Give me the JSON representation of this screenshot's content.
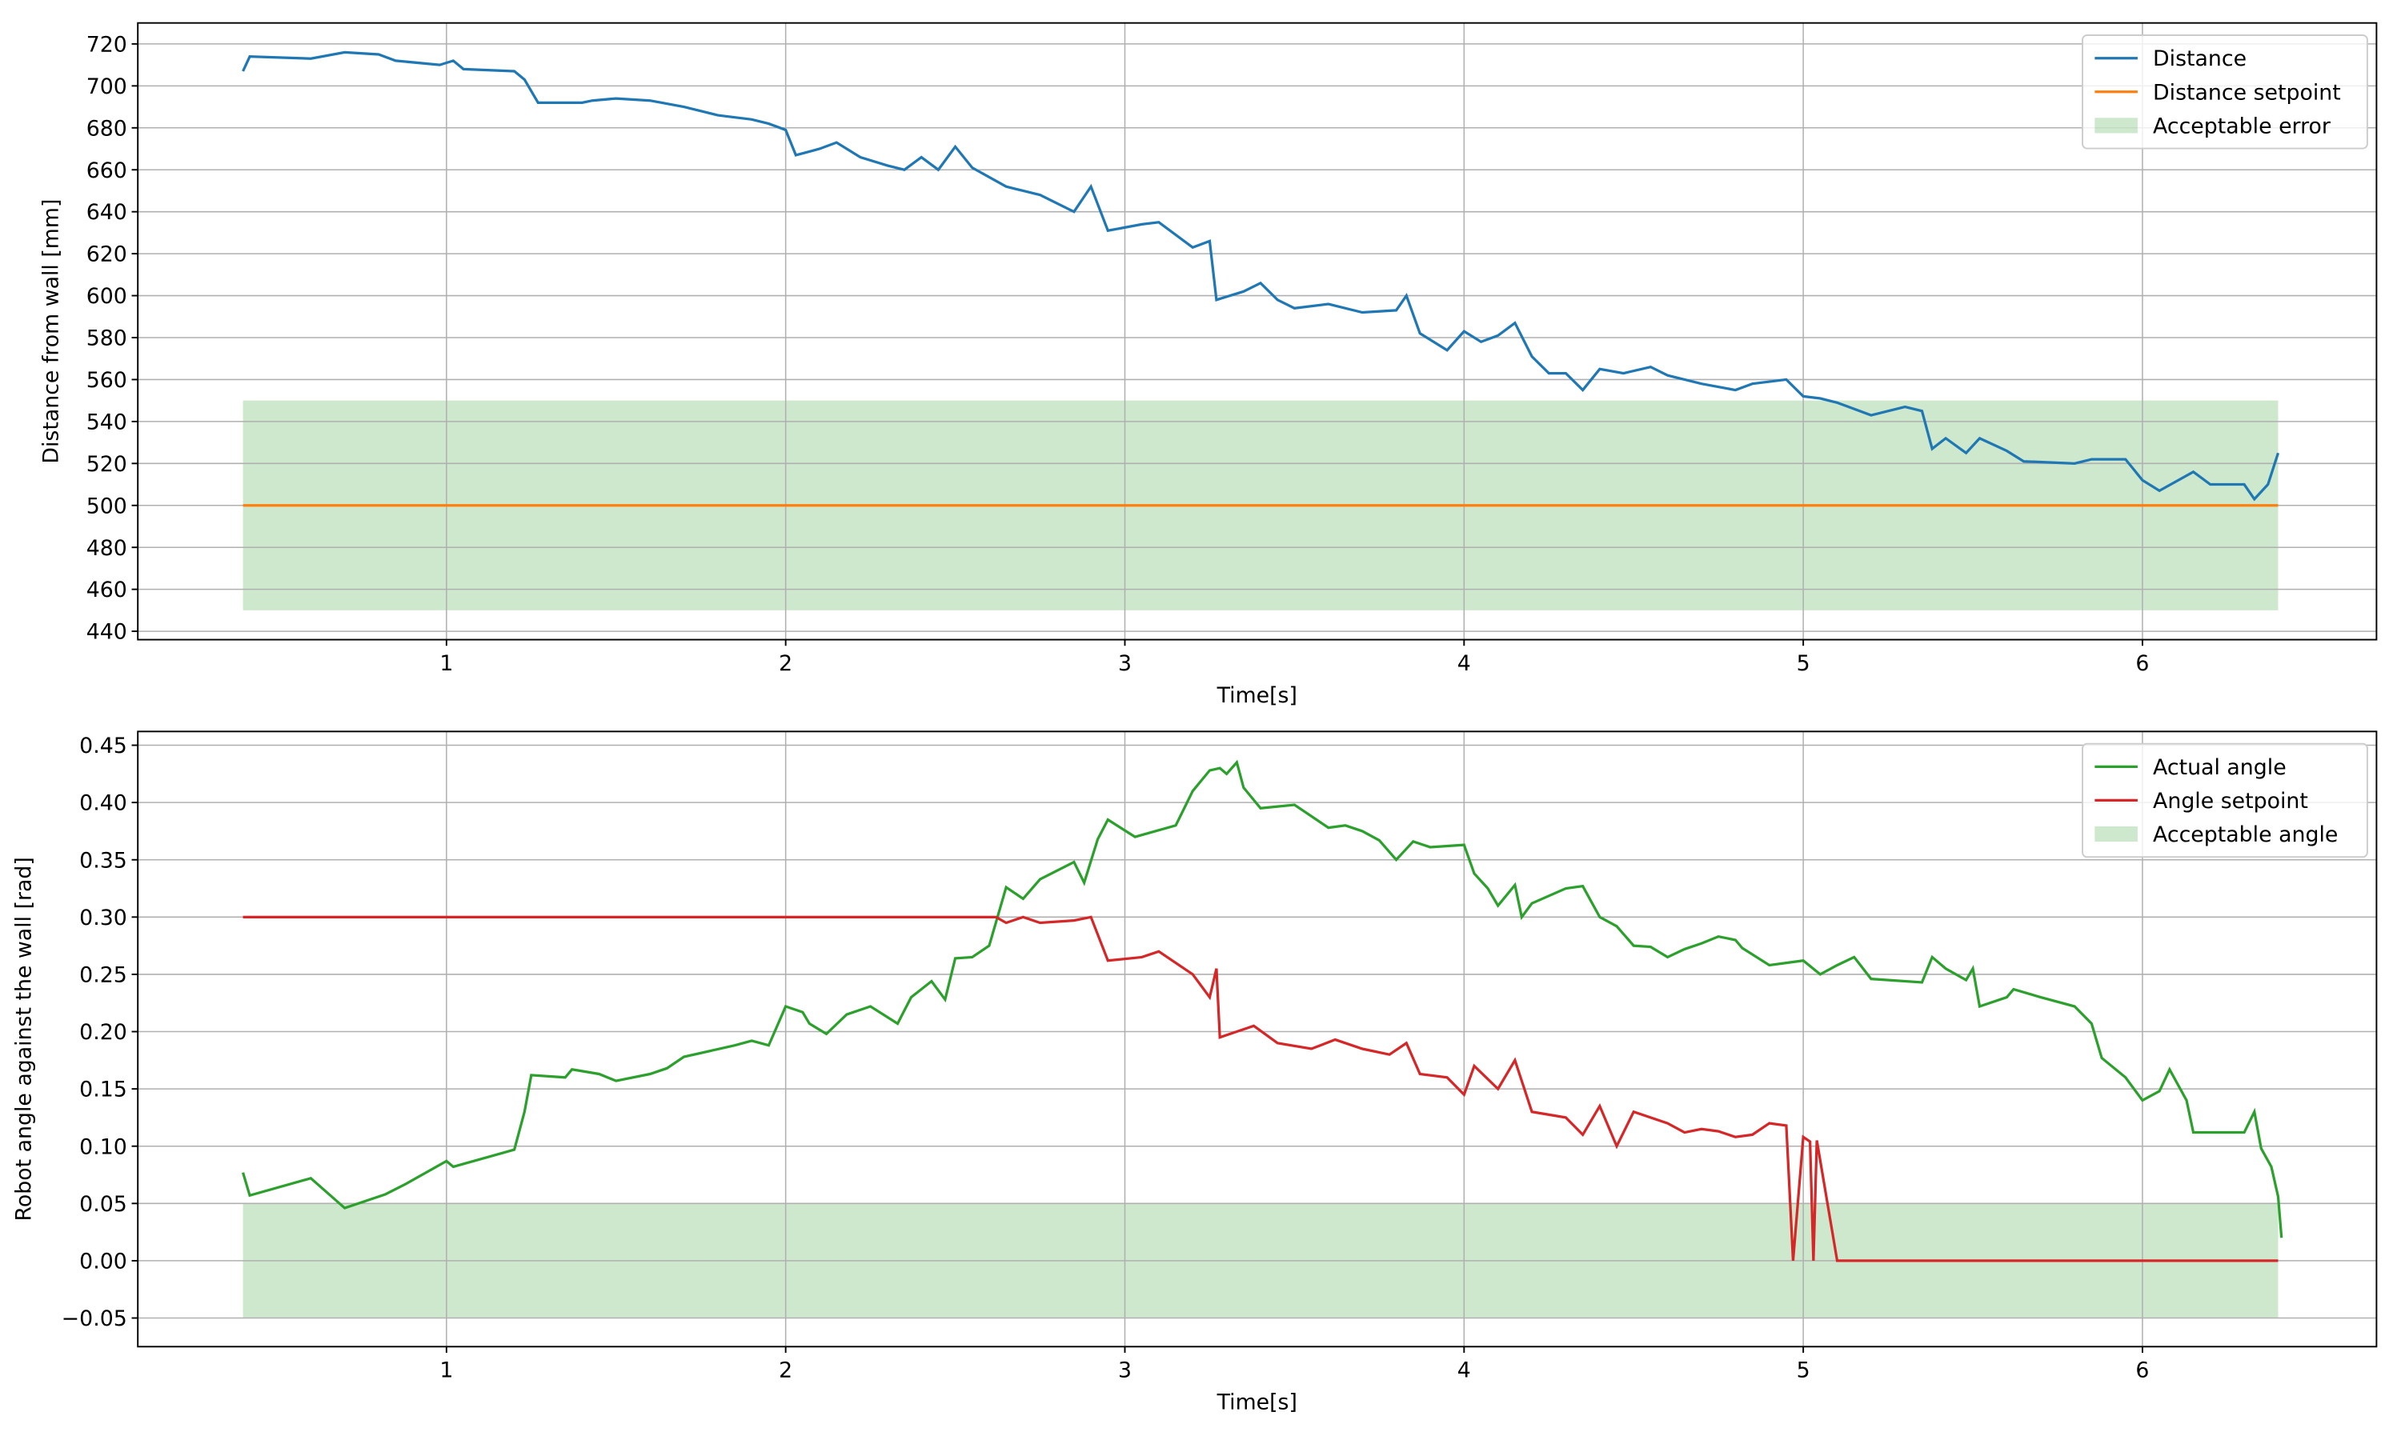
{
  "chart_data": [
    {
      "type": "line",
      "xlabel": "Time[s]",
      "ylabel": "Distance from wall [mm]",
      "xlim": [
        0.09,
        6.69
      ],
      "ylim": [
        436,
        730
      ],
      "grid": true,
      "legend": "upper right",
      "xticks": [
        1,
        2,
        3,
        4,
        5,
        6
      ],
      "yticks": [
        440,
        460,
        480,
        500,
        520,
        540,
        560,
        580,
        600,
        620,
        640,
        660,
        680,
        700,
        720
      ],
      "series": [
        {
          "name": "Distance",
          "color": "#1f77b4",
          "x": [
            0.4,
            0.42,
            0.6,
            0.7,
            0.8,
            0.85,
            0.98,
            1.02,
            1.05,
            1.2,
            1.23,
            1.27,
            1.4,
            1.43,
            1.5,
            1.6,
            1.7,
            1.8,
            1.9,
            1.95,
            2.0,
            2.03,
            2.1,
            2.15,
            2.22,
            2.3,
            2.35,
            2.4,
            2.45,
            2.5,
            2.55,
            2.65,
            2.7,
            2.75,
            2.85,
            2.9,
            2.95,
            3.05,
            3.1,
            3.2,
            3.25,
            3.27,
            3.35,
            3.4,
            3.45,
            3.5,
            3.6,
            3.7,
            3.8,
            3.83,
            3.87,
            3.95,
            4.0,
            4.05,
            4.1,
            4.15,
            4.2,
            4.25,
            4.3,
            4.35,
            4.4,
            4.47,
            4.55,
            4.6,
            4.7,
            4.8,
            4.85,
            4.9,
            4.95,
            5.0,
            5.05,
            5.1,
            5.2,
            5.3,
            5.35,
            5.38,
            5.42,
            5.48,
            5.52,
            5.6,
            5.65,
            5.8,
            5.85,
            5.95,
            6.0,
            6.05,
            6.15,
            6.2,
            6.3,
            6.33,
            6.37,
            6.4
          ],
          "values": [
            707,
            714,
            713,
            716,
            715,
            712,
            710,
            712,
            708,
            707,
            703,
            692,
            692,
            693,
            694,
            693,
            690,
            686,
            684,
            682,
            679,
            667,
            670,
            673,
            666,
            662,
            660,
            666,
            660,
            671,
            661,
            652,
            650,
            648,
            640,
            652,
            631,
            634,
            635,
            623,
            626,
            598,
            602,
            606,
            598,
            594,
            596,
            592,
            593,
            600,
            582,
            574,
            583,
            578,
            581,
            587,
            571,
            563,
            563,
            555,
            565,
            563,
            566,
            562,
            558,
            555,
            558,
            559,
            560,
            552,
            551,
            549,
            543,
            547,
            545,
            527,
            532,
            525,
            532,
            526,
            521,
            520,
            522,
            522,
            512,
            507,
            516,
            510,
            510,
            503,
            510,
            525
          ]
        },
        {
          "name": "Distance setpoint",
          "color": "#ff7f0e",
          "x": [
            0.4,
            6.4
          ],
          "values": [
            500,
            500
          ]
        }
      ],
      "bands": [
        {
          "name": "Acceptable error",
          "color": "#2ca02c",
          "x": [
            0.4,
            6.4
          ],
          "lower": [
            450,
            450
          ],
          "upper": [
            550,
            550
          ]
        }
      ]
    },
    {
      "type": "line",
      "xlabel": "Time[s]",
      "ylabel": "Robot angle against the wall [rad]",
      "xlim": [
        0.09,
        6.69
      ],
      "ylim": [
        -0.075,
        0.462
      ],
      "grid": true,
      "legend": "upper right",
      "xticks": [
        1,
        2,
        3,
        4,
        5,
        6
      ],
      "yticks": [
        {
          "value": -0.05,
          "label": "−0.05"
        },
        {
          "value": 0,
          "label": "0.00"
        },
        {
          "value": 0.05,
          "label": "0.05"
        },
        {
          "value": 0.1,
          "label": "0.10"
        },
        {
          "value": 0.15,
          "label": "0.15"
        },
        {
          "value": 0.2,
          "label": "0.20"
        },
        {
          "value": 0.25,
          "label": "0.25"
        },
        {
          "value": 0.3,
          "label": "0.30"
        },
        {
          "value": 0.35,
          "label": "0.35"
        },
        {
          "value": 0.4,
          "label": "0.40"
        },
        {
          "value": 0.45,
          "label": "0.45"
        }
      ],
      "series": [
        {
          "name": "Actual angle",
          "color": "#2ca02c",
          "x": [
            0.4,
            0.42,
            0.6,
            0.7,
            0.82,
            0.88,
            1.0,
            1.02,
            1.2,
            1.23,
            1.25,
            1.35,
            1.37,
            1.45,
            1.5,
            1.6,
            1.65,
            1.7,
            1.85,
            1.9,
            1.95,
            2.0,
            2.05,
            2.07,
            2.12,
            2.18,
            2.25,
            2.33,
            2.37,
            2.43,
            2.47,
            2.5,
            2.55,
            2.6,
            2.65,
            2.7,
            2.75,
            2.85,
            2.88,
            2.92,
            2.95,
            3.03,
            3.15,
            3.2,
            3.25,
            3.28,
            3.3,
            3.33,
            3.35,
            3.4,
            3.5,
            3.6,
            3.65,
            3.7,
            3.75,
            3.8,
            3.85,
            3.9,
            4.0,
            4.03,
            4.07,
            4.1,
            4.15,
            4.17,
            4.2,
            4.3,
            4.35,
            4.4,
            4.45,
            4.5,
            4.55,
            4.6,
            4.65,
            4.7,
            4.75,
            4.8,
            4.82,
            4.9,
            4.95,
            5.0,
            5.05,
            5.1,
            5.15,
            5.2,
            5.35,
            5.38,
            5.42,
            5.48,
            5.5,
            5.52,
            5.6,
            5.62,
            5.7,
            5.8,
            5.85,
            5.88,
            5.95,
            6.0,
            6.05,
            6.08,
            6.13,
            6.15,
            6.3,
            6.33,
            6.35,
            6.38,
            6.4,
            6.41
          ],
          "values": [
            0.077,
            0.057,
            0.072,
            0.046,
            0.058,
            0.067,
            0.087,
            0.082,
            0.097,
            0.13,
            0.162,
            0.16,
            0.167,
            0.163,
            0.157,
            0.163,
            0.168,
            0.178,
            0.188,
            0.192,
            0.188,
            0.222,
            0.217,
            0.207,
            0.198,
            0.215,
            0.222,
            0.207,
            0.23,
            0.244,
            0.228,
            0.264,
            0.265,
            0.275,
            0.326,
            0.316,
            0.333,
            0.348,
            0.33,
            0.368,
            0.385,
            0.37,
            0.38,
            0.41,
            0.428,
            0.43,
            0.425,
            0.435,
            0.413,
            0.395,
            0.398,
            0.378,
            0.38,
            0.375,
            0.367,
            0.35,
            0.366,
            0.361,
            0.363,
            0.338,
            0.325,
            0.31,
            0.328,
            0.3,
            0.312,
            0.325,
            0.327,
            0.3,
            0.292,
            0.275,
            0.274,
            0.265,
            0.272,
            0.277,
            0.283,
            0.28,
            0.273,
            0.258,
            0.26,
            0.262,
            0.25,
            0.258,
            0.265,
            0.246,
            0.243,
            0.265,
            0.255,
            0.245,
            0.255,
            0.222,
            0.23,
            0.237,
            0.23,
            0.222,
            0.207,
            0.177,
            0.16,
            0.14,
            0.148,
            0.167,
            0.14,
            0.112,
            0.112,
            0.13,
            0.098,
            0.082,
            0.056,
            0.02
          ]
        },
        {
          "name": "Angle setpoint",
          "color": "#d62728",
          "x": [
            0.4,
            2.62,
            2.65,
            2.7,
            2.75,
            2.85,
            2.9,
            2.95,
            3.05,
            3.1,
            3.2,
            3.25,
            3.27,
            3.28,
            3.33,
            3.38,
            3.45,
            3.55,
            3.62,
            3.7,
            3.78,
            3.83,
            3.87,
            3.95,
            4.0,
            4.03,
            4.1,
            4.15,
            4.2,
            4.3,
            4.35,
            4.4,
            4.45,
            4.5,
            4.6,
            4.65,
            4.7,
            4.75,
            4.8,
            4.85,
            4.9,
            4.95,
            4.97,
            5.0,
            5.02,
            5.03,
            5.04,
            5.1,
            6.4
          ],
          "values": [
            0.3,
            0.3,
            0.295,
            0.3,
            0.295,
            0.297,
            0.3,
            0.262,
            0.265,
            0.27,
            0.25,
            0.23,
            0.255,
            0.195,
            0.2,
            0.205,
            0.19,
            0.185,
            0.193,
            0.185,
            0.18,
            0.19,
            0.163,
            0.16,
            0.145,
            0.17,
            0.15,
            0.175,
            0.13,
            0.125,
            0.11,
            0.135,
            0.1,
            0.13,
            0.12,
            0.112,
            0.115,
            0.113,
            0.108,
            0.11,
            0.12,
            0.118,
            0,
            0.108,
            0.104,
            0,
            0.105,
            0,
            0
          ]
        }
      ],
      "bands": [
        {
          "name": "Acceptable angle",
          "color": "#2ca02c",
          "x": [
            0.4,
            6.4
          ],
          "lower": [
            -0.05,
            -0.05
          ],
          "upper": [
            0.05,
            0.05
          ]
        }
      ]
    }
  ]
}
